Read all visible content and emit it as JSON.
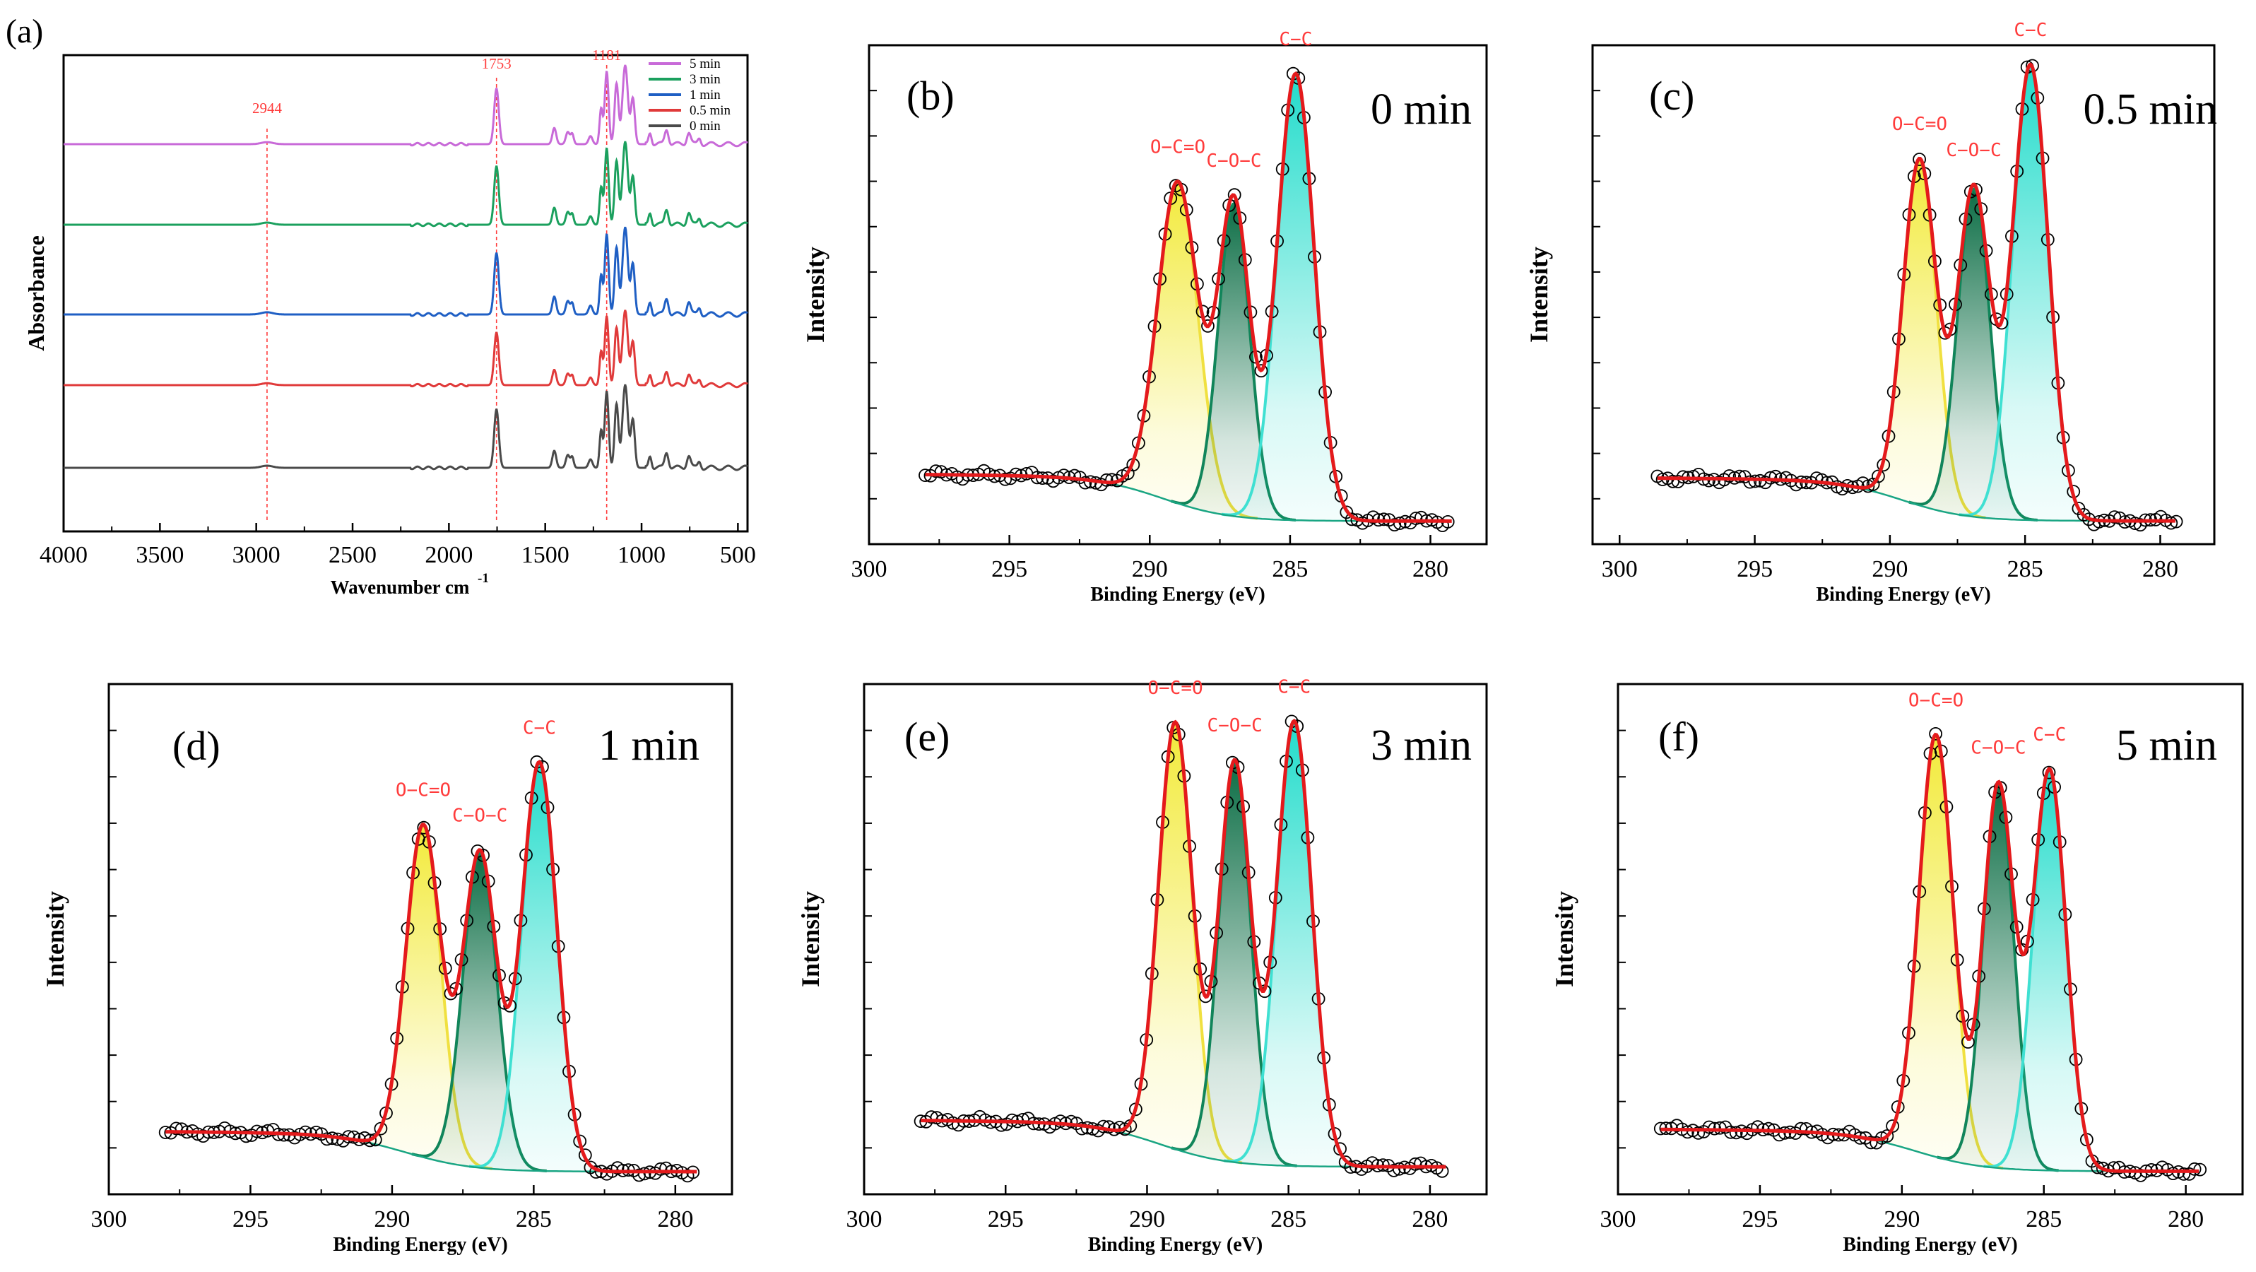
{
  "chart_data": [
    {
      "panel": "(a)",
      "type": "line",
      "title": "",
      "xlabel": "Wavenumber cm",
      "xlabel_sup": "-1",
      "ylabel": "Absorbance",
      "xlim": [
        4000,
        450
      ],
      "x_reversed": true,
      "xticks": [
        4000,
        3500,
        3000,
        2500,
        2000,
        1500,
        1000,
        500
      ],
      "legend_position": "top-right",
      "series": [
        {
          "name": "5 min",
          "color": "#c86ad8"
        },
        {
          "name": "3 min",
          "color": "#1ba05e"
        },
        {
          "name": "1 min",
          "color": "#1f5fc4"
        },
        {
          "name": "0.5 min",
          "color": "#e03a3a"
        },
        {
          "name": "0 min",
          "color": "#4a4a4a"
        }
      ],
      "peaks": [
        {
          "x": 2944,
          "height": 0.02,
          "width": 30
        },
        {
          "x": 1753,
          "height": 0.55,
          "width": 12
        },
        {
          "x": 1453,
          "height": 0.16,
          "width": 10
        },
        {
          "x": 1383,
          "height": 0.12,
          "width": 10
        },
        {
          "x": 1360,
          "height": 0.1,
          "width": 8
        },
        {
          "x": 1265,
          "height": 0.08,
          "width": 10
        },
        {
          "x": 1210,
          "height": 0.35,
          "width": 8
        },
        {
          "x": 1181,
          "height": 0.72,
          "width": 10
        },
        {
          "x": 1130,
          "height": 0.6,
          "width": 10
        },
        {
          "x": 1085,
          "height": 0.78,
          "width": 14
        },
        {
          "x": 1045,
          "height": 0.45,
          "width": 10
        },
        {
          "x": 956,
          "height": 0.12,
          "width": 8
        },
        {
          "x": 870,
          "height": 0.15,
          "width": 10
        },
        {
          "x": 755,
          "height": 0.12,
          "width": 10
        },
        {
          "x": 700,
          "height": 0.06,
          "width": 8
        }
      ],
      "annotations": [
        {
          "label": "2944",
          "x": 2944
        },
        {
          "label": "1753",
          "x": 1753
        },
        {
          "label": "1181",
          "x": 1181
        }
      ]
    },
    {
      "panel": "(b)",
      "time_label": "0 min",
      "type": "line",
      "xlabel": "Binding Energy (eV)",
      "ylabel": "Intensity",
      "xlim": [
        300,
        278
      ],
      "x_reversed": true,
      "xticks": [
        300,
        295,
        290,
        285,
        280
      ],
      "ylim": [
        0,
        1.07
      ],
      "xdata_range": [
        298,
        279.2
      ],
      "baseline": [
        0.12,
        0.02
      ],
      "components": [
        {
          "name": "O-C=O",
          "label": "O−C=O",
          "center": 289.0,
          "height": 0.72,
          "width": 0.72,
          "fill": "#f2ea3a",
          "line": "#f0e040"
        },
        {
          "name": "C-O-C",
          "label": "C−O−C",
          "center": 287.0,
          "height": 0.7,
          "width": 0.56,
          "fill": "#0d6e46",
          "line": "#11855a"
        },
        {
          "name": "C-C",
          "label": "C−C",
          "center": 284.8,
          "height": 1.0,
          "width": 0.66,
          "fill": "#22dccb",
          "line": "#3fe0d2"
        }
      ]
    },
    {
      "panel": "(c)",
      "time_label": "0.5 min",
      "type": "line",
      "xlabel": "Binding Energy (eV)",
      "ylabel": "Intensity",
      "xlim": [
        301,
        278
      ],
      "x_reversed": true,
      "xticks": [
        300,
        295,
        290,
        285,
        280
      ],
      "ylim": [
        0,
        1.05
      ],
      "xdata_range": [
        298.6,
        279.4
      ],
      "baseline": [
        0.11,
        0.02
      ],
      "components": [
        {
          "name": "O-C=O",
          "label": "O−C=O",
          "center": 288.9,
          "height": 0.76,
          "width": 0.62,
          "fill": "#f2ea3a",
          "line": "#f0e040"
        },
        {
          "name": "C-O-C",
          "label": "C−O−C",
          "center": 286.9,
          "height": 0.72,
          "width": 0.6,
          "fill": "#0d6e46",
          "line": "#11855a"
        },
        {
          "name": "C-C",
          "label": "C−C",
          "center": 284.8,
          "height": 1.0,
          "width": 0.66,
          "fill": "#22dccb",
          "line": "#3fe0d2"
        }
      ]
    },
    {
      "panel": "(d)",
      "time_label": "1 min",
      "type": "line",
      "xlabel": "Binding Energy (eV)",
      "ylabel": "Intensity",
      "xlim": [
        300,
        278
      ],
      "x_reversed": true,
      "xticks": [
        300,
        295,
        290,
        285,
        280
      ],
      "ylim": [
        0,
        1.15
      ],
      "xdata_range": [
        298,
        279.2
      ],
      "baseline": [
        0.11,
        0.02
      ],
      "components": [
        {
          "name": "O-C=O",
          "label": "O−C=O",
          "center": 288.9,
          "height": 0.78,
          "width": 0.62,
          "fill": "#f2ea3a",
          "line": "#f0e040"
        },
        {
          "name": "C-O-C",
          "label": "C−O−C",
          "center": 286.9,
          "height": 0.74,
          "width": 0.6,
          "fill": "#0d6e46",
          "line": "#11855a"
        },
        {
          "name": "C-C",
          "label": "C−C",
          "center": 284.8,
          "height": 0.96,
          "width": 0.62,
          "fill": "#22dccb",
          "line": "#3fe0d2"
        }
      ]
    },
    {
      "panel": "(e)",
      "time_label": "3 min",
      "type": "line",
      "xlabel": "Binding Energy (eV)",
      "ylabel": "Intensity",
      "xlim": [
        300,
        278
      ],
      "x_reversed": true,
      "xticks": [
        300,
        295,
        290,
        285,
        280
      ],
      "ylim": [
        0,
        1.1
      ],
      "xdata_range": [
        298,
        279.4
      ],
      "baseline": [
        0.13,
        0.03
      ],
      "components": [
        {
          "name": "O-C=O",
          "label": "O−C=O",
          "center": 289.0,
          "height": 0.96,
          "width": 0.6,
          "fill": "#f2ea3a",
          "line": "#f0e040"
        },
        {
          "name": "C-O-C",
          "label": "C−O−C",
          "center": 286.9,
          "height": 0.9,
          "width": 0.56,
          "fill": "#0d6e46",
          "line": "#11855a"
        },
        {
          "name": "C-C",
          "label": "C−C",
          "center": 284.8,
          "height": 1.0,
          "width": 0.62,
          "fill": "#22dccb",
          "line": "#3fe0d2"
        }
      ]
    },
    {
      "panel": "(f)",
      "time_label": "5 min",
      "type": "line",
      "xlabel": "Binding Energy (eV)",
      "ylabel": "Intensity",
      "xlim": [
        300,
        278
      ],
      "x_reversed": true,
      "xticks": [
        300,
        295,
        290,
        285,
        280
      ],
      "ylim": [
        0,
        1.1
      ],
      "xdata_range": [
        298.5,
        279.5
      ],
      "baseline": [
        0.11,
        0.02
      ],
      "components": [
        {
          "name": "O-C=O",
          "label": "O−C=O",
          "center": 288.8,
          "height": 0.95,
          "width": 0.6,
          "fill": "#f2ea3a",
          "line": "#f0e040"
        },
        {
          "name": "C-O-C",
          "label": "C−O−C",
          "center": 286.6,
          "height": 0.86,
          "width": 0.54,
          "fill": "#0d6e46",
          "line": "#11855a"
        },
        {
          "name": "C-C",
          "label": "C−C",
          "center": 284.8,
          "height": 0.9,
          "width": 0.58,
          "fill": "#22dccb",
          "line": "#3fe0d2"
        }
      ]
    }
  ],
  "colors": {
    "envelope": "#e41a1c",
    "marker": "#000000",
    "annotation_text": "#ff3b3b",
    "baseline": "#19a583",
    "axis": "#000000"
  }
}
